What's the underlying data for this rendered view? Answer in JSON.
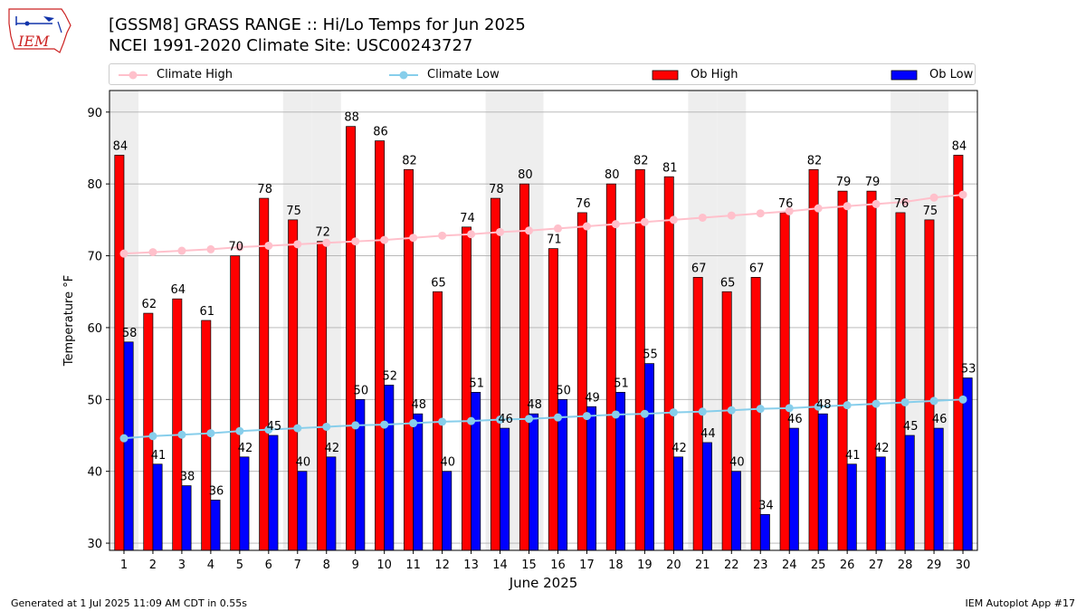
{
  "header": {
    "logo_text": "IEM",
    "title_line1": "[GSSM8] GRASS RANGE :: Hi/Lo Temps for Jun 2025",
    "title_line2": "NCEI 1991-2020 Climate Site: USC00243727"
  },
  "legend": {
    "items": [
      {
        "label": "Climate High",
        "color": "#ffc0cb",
        "marker": "line-dot"
      },
      {
        "label": "Climate Low",
        "color": "#87ceeb",
        "marker": "line-dot"
      },
      {
        "label": "Ob High",
        "color": "#ff0000",
        "marker": "box"
      },
      {
        "label": "Ob Low",
        "color": "#0000ff",
        "marker": "box"
      }
    ]
  },
  "footer": {
    "left": "Generated at 1 Jul 2025 11:09 AM CDT in 0.55s",
    "right": "IEM Autoplot App #17"
  },
  "chart_data": {
    "type": "bar",
    "title": "[GSSM8] GRASS RANGE :: Hi/Lo Temps for Jun 2025",
    "xlabel": "June 2025",
    "ylabel": "Temperature °F",
    "ylim": [
      29,
      93
    ],
    "yticks": [
      30,
      40,
      50,
      60,
      70,
      80,
      90
    ],
    "grid": "horizontal",
    "legend_position": "top",
    "weekend_shading_days": [
      1,
      7,
      8,
      14,
      15,
      21,
      22,
      28,
      29
    ],
    "categories": [
      "1",
      "2",
      "3",
      "4",
      "5",
      "6",
      "7",
      "8",
      "9",
      "10",
      "11",
      "12",
      "13",
      "14",
      "15",
      "16",
      "17",
      "18",
      "19",
      "20",
      "21",
      "22",
      "23",
      "24",
      "25",
      "26",
      "27",
      "28",
      "29",
      "30"
    ],
    "series": [
      {
        "name": "Ob High",
        "kind": "bar",
        "color": "#ff0000",
        "values": [
          84,
          62,
          64,
          61,
          70,
          78,
          75,
          72,
          88,
          86,
          82,
          65,
          74,
          78,
          80,
          71,
          76,
          80,
          82,
          81,
          67,
          65,
          67,
          76,
          82,
          79,
          79,
          76,
          75,
          84
        ]
      },
      {
        "name": "Ob Low",
        "kind": "bar",
        "color": "#0000ff",
        "values": [
          58,
          41,
          38,
          36,
          42,
          45,
          40,
          42,
          50,
          52,
          48,
          40,
          51,
          46,
          48,
          50,
          49,
          51,
          55,
          42,
          44,
          40,
          34,
          46,
          48,
          41,
          42,
          45,
          46,
          53
        ]
      },
      {
        "name": "Climate High",
        "kind": "line",
        "color": "#ffc0cb",
        "values": [
          70.3,
          70.5,
          70.7,
          70.9,
          71.2,
          71.4,
          71.6,
          71.8,
          72.0,
          72.2,
          72.5,
          72.8,
          73.0,
          73.3,
          73.5,
          73.8,
          74.1,
          74.4,
          74.7,
          75.0,
          75.3,
          75.6,
          75.9,
          76.2,
          76.6,
          76.9,
          77.2,
          77.5,
          78.1,
          78.5
        ]
      },
      {
        "name": "Climate Low",
        "kind": "line",
        "color": "#87ceeb",
        "values": [
          44.6,
          44.9,
          45.1,
          45.3,
          45.6,
          45.8,
          46.0,
          46.2,
          46.4,
          46.5,
          46.7,
          46.9,
          47.0,
          47.2,
          47.3,
          47.5,
          47.7,
          47.9,
          48.0,
          48.2,
          48.3,
          48.5,
          48.7,
          48.8,
          49.0,
          49.2,
          49.4,
          49.6,
          49.8,
          50.0
        ]
      }
    ]
  }
}
